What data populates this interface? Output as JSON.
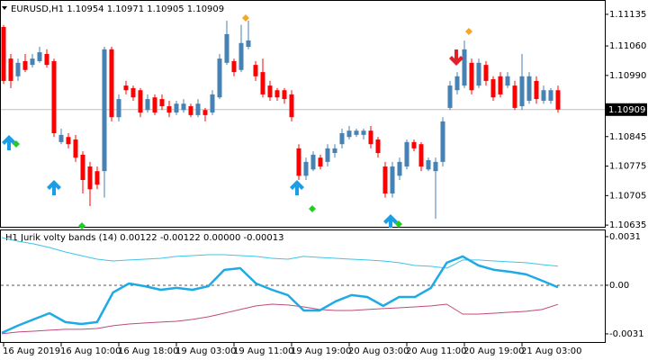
{
  "chart_data": [
    {
      "type": "candlestick",
      "title": "EURUSD,H1  1.10954 1.10971 1.10905 1.10909",
      "categories": [
        "16 Aug 2019",
        null,
        null,
        null,
        null,
        null,
        null,
        null,
        "16 Aug 10:00",
        null,
        null,
        null,
        null,
        null,
        null,
        null,
        "16 Aug 18:00",
        null,
        null,
        null,
        null,
        null,
        null,
        null,
        "19 Aug 03:00",
        null,
        null,
        null,
        null,
        null,
        null,
        null,
        "19 Aug 11:00",
        null,
        null,
        null,
        null,
        null,
        null,
        null,
        "19 Aug 19:00",
        null,
        null,
        null,
        null,
        null,
        null,
        null,
        "20 Aug 03:00",
        null,
        null,
        null,
        null,
        null,
        null,
        null,
        "20 Aug 11:00",
        null,
        null,
        null,
        null,
        null,
        null,
        null,
        "20 Aug 19:00",
        null,
        null,
        null,
        null,
        null,
        null,
        null,
        "21 Aug 03:00",
        null,
        null,
        null,
        null,
        null
      ],
      "open": [
        1.11105,
        1.1103,
        1.10988,
        1.11024,
        1.11015,
        1.11024,
        1.11041,
        1.11024,
        1.10832,
        1.10844,
        1.10838,
        1.10802,
        1.10774,
        1.10763,
        1.10763,
        1.11052,
        1.10891,
        1.10966,
        1.1096,
        1.10955,
        1.10908,
        1.10938,
        1.10934,
        1.10917,
        1.10902,
        1.10908,
        1.10917,
        1.10896,
        1.10908,
        1.10902,
        1.10938,
        1.1102,
        1.11024,
        1.11003,
        1.11058,
        1.11015,
        1.10998,
        1.10966,
        1.10955,
        1.10955,
        1.10945,
        1.10817,
        1.10752,
        1.10767,
        1.10795,
        1.10785,
        1.10806,
        1.10827,
        1.10844,
        1.10849,
        1.10849,
        1.10859,
        1.10838,
        1.10774,
        1.1071,
        1.10752,
        1.10774,
        1.10832,
        1.10827,
        1.10767,
        1.10763,
        1.10785,
        1.10913,
        1.10955,
        1.10966,
        1.1102,
        1.10966,
        1.11015,
        1.10981,
        1.10988,
        1.10966,
        1.10966,
        1.10917,
        1.1093,
        1.10977,
        1.1093,
        1.1093,
        1.10955
      ],
      "high": [
        1.1111,
        1.11041,
        1.1103,
        1.11041,
        1.11041,
        1.11058,
        1.11052,
        1.1103,
        1.10864,
        1.10853,
        1.10849,
        1.1081,
        1.10785,
        1.10774,
        1.11058,
        1.11058,
        1.10945,
        1.10977,
        1.10966,
        1.1096,
        1.10945,
        1.10945,
        1.10945,
        1.1093,
        1.1093,
        1.10934,
        1.10923,
        1.10934,
        1.10913,
        1.10955,
        1.11041,
        1.1112,
        1.1103,
        1.1111,
        1.1112,
        1.11024,
        1.1103,
        1.10977,
        1.1096,
        1.1096,
        1.10955,
        1.10827,
        1.10795,
        1.1081,
        1.10802,
        1.10827,
        1.10827,
        1.10864,
        1.1087,
        1.10864,
        1.10864,
        1.1087,
        1.10844,
        1.10785,
        1.10785,
        1.10795,
        1.10838,
        1.10838,
        1.10832,
        1.10795,
        1.10795,
        1.10891,
        1.10977,
        1.10998,
        1.11073,
        1.1103,
        1.1103,
        1.11024,
        1.10988,
        1.10998,
        1.10998,
        1.10977,
        1.11041,
        1.10998,
        1.10988,
        1.10966,
        1.1096,
        1.10966
      ],
      "low": [
        1.1097,
        1.1096,
        1.10977,
        1.10998,
        1.11009,
        1.1102,
        1.11009,
        1.10844,
        1.10827,
        1.10817,
        1.10785,
        1.1071,
        1.1068,
        1.1072,
        1.107,
        1.10881,
        1.10881,
        1.10945,
        1.1093,
        1.10891,
        1.10902,
        1.10896,
        1.10908,
        1.10891,
        1.10896,
        1.10902,
        1.10891,
        1.10891,
        1.10881,
        1.10896,
        1.10934,
        1.11015,
        1.10988,
        1.10998,
        1.11052,
        1.10977,
        1.10938,
        1.1093,
        1.1093,
        1.10923,
        1.10881,
        1.10742,
        1.10742,
        1.10763,
        1.10767,
        1.10774,
        1.10795,
        1.10817,
        1.10838,
        1.10844,
        1.10838,
        1.10817,
        1.10795,
        1.107,
        1.107,
        1.10742,
        1.10767,
        1.1081,
        1.10763,
        1.10763,
        1.1065,
        1.10774,
        1.10908,
        1.10945,
        1.1096,
        1.10945,
        1.1096,
        1.10966,
        1.1093,
        1.10938,
        1.1096,
        1.10908,
        1.10908,
        1.10923,
        1.10923,
        1.10923,
        1.10923,
        1.10902
      ],
      "close": [
        1.10977,
        1.10977,
        1.1102,
        1.11003,
        1.1103,
        1.11045,
        1.11015,
        1.10853,
        1.10849,
        1.10827,
        1.10795,
        1.10742,
        1.1072,
        1.10731,
        1.11052,
        1.10891,
        1.10934,
        1.10955,
        1.10938,
        1.10902,
        1.10934,
        1.10902,
        1.10917,
        1.10902,
        1.10923,
        1.10923,
        1.10896,
        1.10923,
        1.10896,
        1.10945,
        1.1103,
        1.11088,
        1.10998,
        1.11067,
        1.11073,
        1.10988,
        1.10945,
        1.10938,
        1.10938,
        1.10934,
        1.10891,
        1.10752,
        1.10785,
        1.10802,
        1.10774,
        1.10817,
        1.10817,
        1.10853,
        1.10859,
        1.10859,
        1.10859,
        1.10827,
        1.10806,
        1.1071,
        1.10774,
        1.10785,
        1.10832,
        1.10817,
        1.10774,
        1.10789,
        1.10785,
        1.10881,
        1.10966,
        1.10988,
        1.11052,
        1.10955,
        1.1102,
        1.10977,
        1.10938,
        1.10945,
        1.10988,
        1.10913,
        1.10988,
        1.10988,
        1.10934,
        1.10955,
        1.10955,
        1.10909
      ],
      "up_color": "#4682b4",
      "down_color": "#ff0000",
      "current_price": 1.10909,
      "ylim": [
        1.10631,
        1.11169
      ],
      "yticks": [
        1.11135,
        {
          "value": 1.1106,
          "label": "1.11060"
        },
        {
          "value": 1.1099,
          "label": "1.10990"
        },
        1.10845,
        1.10775,
        1.10705,
        1.10635
      ]
    },
    {
      "type": "line",
      "title": "H1 Jurik volty bands (14) 0.00122 -0.00122 0.00000 -0.00013",
      "series": [
        {
          "color": "#40c4e8",
          "width": 1,
          "values": [
            0.00304,
            0.00281,
            0.00264,
            0.00241,
            0.00212,
            0.00189,
            0.00166,
            0.00155,
            0.00161,
            0.00166,
            0.00172,
            0.00184,
            0.00189,
            0.00195,
            0.00195,
            0.00189,
            0.00184,
            0.00172,
            0.00166,
            0.00184,
            0.00178,
            0.00172,
            0.00166,
            0.00161,
            0.00155,
            0.00144,
            0.00126,
            0.00121,
            0.00109,
            0.00161,
            0.00161,
            0.00155,
            0.00149,
            0.00144,
            0.00132,
            0.00122
          ]
        },
        {
          "color": "#c04a7c",
          "width": 1,
          "values": [
            -0.0031,
            -0.00298,
            -0.00293,
            -0.00287,
            -0.00281,
            -0.00281,
            -0.00276,
            -0.00258,
            -0.00247,
            -0.00241,
            -0.00235,
            -0.0023,
            -0.00218,
            -0.00201,
            -0.00178,
            -0.00155,
            -0.00132,
            -0.00121,
            -0.00126,
            -0.00138,
            -0.00155,
            -0.00161,
            -0.00161,
            -0.00155,
            -0.00149,
            -0.00144,
            -0.00138,
            -0.00132,
            -0.00121,
            -0.00184,
            -0.00184,
            -0.00178,
            -0.00172,
            -0.00166,
            -0.00155,
            -0.00122
          ]
        },
        {
          "color": "#1eaae6",
          "width": 2.5,
          "values": [
            -0.00304,
            -0.00258,
            -0.00218,
            -0.00178,
            -0.00235,
            -0.00247,
            -0.00235,
            -0.00046,
            0.00011,
            -6e-05,
            -0.00029,
            -0.00017,
            -0.00029,
            -6e-05,
            0.00098,
            0.00109,
            0.00011,
            -0.00029,
            -0.00063,
            -0.00161,
            -0.00161,
            -0.00103,
            -0.00063,
            -0.00075,
            -0.00132,
            -0.00075,
            -0.00075,
            -0.00017,
            0.00144,
            0.00184,
            0.00126,
            0.00098,
            0.00086,
            0.00069,
            0.00029,
            -0.00013
          ]
        }
      ],
      "zero_line": true,
      "ylim": [
        -0.00362,
        0.0035
      ],
      "yticks": [
        0.0031,
        {
          "value": 0,
          "label": "0.00"
        },
        -0.0031
      ]
    }
  ]
}
